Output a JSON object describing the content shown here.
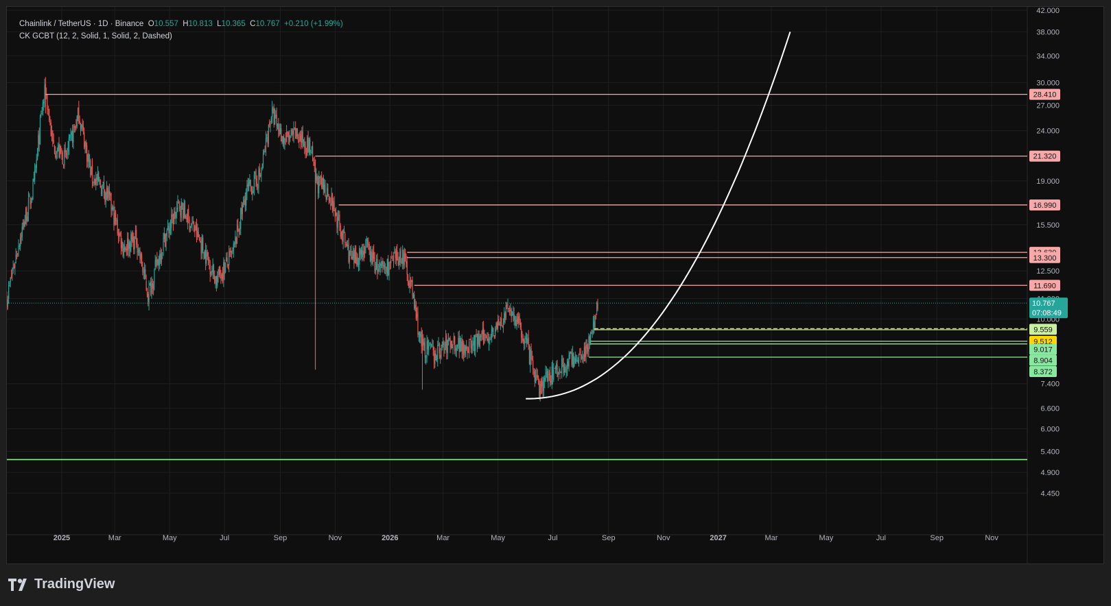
{
  "header": {
    "symbol": "Chainlink / TetherUS · 1D · Binance",
    "o_label": "O",
    "o_value": "10.557",
    "h_label": "H",
    "h_value": "10.813",
    "l_label": "L",
    "l_value": "10.365",
    "c_label": "C",
    "c_value": "10.767",
    "change": "+0.210 (+1.99%)",
    "indicator": "CK GCBT (12, 2, Solid, 1, Solid, 2, Dashed)"
  },
  "brand": {
    "name": "TradingView"
  },
  "colors": {
    "up": "#26a69a",
    "down": "#ef5350",
    "resistance": "#f7a8a8",
    "support": "#90ee90",
    "support_fill_label": "#88e8a0",
    "yellow": "#ffd700",
    "curve": "#ffffff",
    "grid": "#1f1f1f",
    "axis_text": "#b2b5be",
    "last_price_bg": "#26a69a"
  },
  "chart_data": {
    "type": "candlestick",
    "scale": "log",
    "ylim": [
      4.1,
      42.0
    ],
    "y_ticks": [
      "42.000",
      "38.000",
      "34.000",
      "30.000",
      "27.000",
      "24.000",
      "19.000",
      "15.500",
      "12.500",
      "11.000",
      "10.000",
      "7.400",
      "6.600",
      "6.000",
      "5.400",
      "4.900",
      "4.450"
    ],
    "x_ticks": [
      "2025",
      "Mar",
      "May",
      "Jul",
      "Sep",
      "Nov",
      "2026",
      "Mar",
      "May",
      "Jul",
      "Sep",
      "Nov",
      "2027",
      "Mar",
      "May",
      "Jul",
      "Sep",
      "Nov"
    ],
    "price_path": [
      [
        "2024-11-01",
        11.0
      ],
      [
        "2024-11-15",
        14.5
      ],
      [
        "2024-12-01",
        18.5
      ],
      [
        "2024-12-10",
        26.5
      ],
      [
        "2024-12-14",
        29.0
      ],
      [
        "2024-12-22",
        22.5
      ],
      [
        "2025-01-05",
        21.0
      ],
      [
        "2025-01-20",
        26.0
      ],
      [
        "2025-02-03",
        19.5
      ],
      [
        "2025-02-20",
        18.0
      ],
      [
        "2025-03-10",
        14.0
      ],
      [
        "2025-03-25",
        14.5
      ],
      [
        "2025-04-07",
        11.2
      ],
      [
        "2025-04-25",
        14.5
      ],
      [
        "2025-05-12",
        17.0
      ],
      [
        "2025-05-30",
        15.0
      ],
      [
        "2025-06-22",
        12.0
      ],
      [
        "2025-07-10",
        13.5
      ],
      [
        "2025-07-25",
        18.0
      ],
      [
        "2025-08-10",
        19.5
      ],
      [
        "2025-08-22",
        26.0
      ],
      [
        "2025-09-05",
        23.0
      ],
      [
        "2025-09-20",
        23.5
      ],
      [
        "2025-10-05",
        22.0
      ],
      [
        "2025-10-10",
        19.0
      ],
      [
        "2025-10-25",
        18.0
      ],
      [
        "2025-11-05",
        15.5
      ],
      [
        "2025-11-20",
        13.0
      ],
      [
        "2025-12-05",
        14.0
      ],
      [
        "2025-12-20",
        12.5
      ],
      [
        "2026-01-05",
        13.0
      ],
      [
        "2026-01-15",
        13.5
      ],
      [
        "2026-01-25",
        11.5
      ],
      [
        "2026-02-05",
        8.8
      ],
      [
        "2026-02-20",
        8.5
      ],
      [
        "2026-03-10",
        9.0
      ],
      [
        "2026-04-01",
        8.8
      ],
      [
        "2026-04-20",
        9.3
      ],
      [
        "2026-05-05",
        9.8
      ],
      [
        "2026-05-14",
        10.6
      ],
      [
        "2026-06-01",
        9.0
      ],
      [
        "2026-06-15",
        7.2
      ],
      [
        "2026-06-30",
        7.8
      ],
      [
        "2026-07-20",
        8.2
      ],
      [
        "2026-08-05",
        8.6
      ],
      [
        "2026-08-15",
        9.5
      ],
      [
        "2026-08-20",
        10.767
      ]
    ],
    "last_price": {
      "value": "10.767",
      "countdown": "07:08:49"
    },
    "resistance_levels": [
      {
        "value": 28.41,
        "label": "28.410",
        "from": "2024-12-14"
      },
      {
        "value": 21.32,
        "label": "21.320",
        "from": "2025-10-10"
      },
      {
        "value": 16.99,
        "label": "16.990",
        "from": "2025-11-05"
      },
      {
        "value": 13.63,
        "label": "13.630",
        "from": "2026-01-20"
      },
      {
        "value": 13.3,
        "label": "13.300",
        "from": "2026-01-20"
      },
      {
        "value": 11.69,
        "label": "11.690",
        "from": "2026-01-28"
      }
    ],
    "support_levels": [
      {
        "value": 9.559,
        "label": "9.559",
        "from": "2026-08-16",
        "style": "dashed-yellow"
      },
      {
        "value": 9.512,
        "label": "9.512",
        "from": "2026-08-16",
        "style": "yellow"
      },
      {
        "value": 9.017,
        "label": "9.017",
        "from": "2026-08-12",
        "style": "green"
      },
      {
        "value": 8.904,
        "label": "8.904",
        "from": "2026-08-12",
        "style": "green"
      },
      {
        "value": 8.372,
        "label": "8.372",
        "from": "2026-08-10",
        "style": "green"
      },
      {
        "value": 5.2,
        "label": "",
        "from": "2024-11-01",
        "style": "green"
      }
    ],
    "curve": {
      "start": [
        "2026-06-01",
        6.9
      ],
      "end": [
        "2027-03-22",
        38.0
      ]
    }
  }
}
